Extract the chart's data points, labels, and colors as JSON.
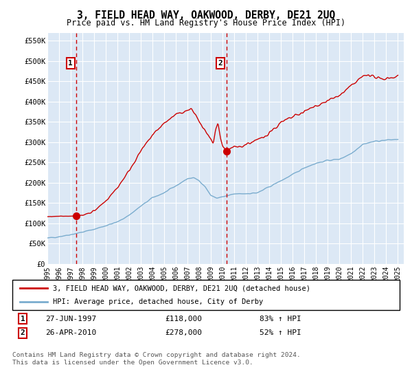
{
  "title": "3, FIELD HEAD WAY, OAKWOOD, DERBY, DE21 2UQ",
  "subtitle": "Price paid vs. HM Land Registry's House Price Index (HPI)",
  "legend_line1": "3, FIELD HEAD WAY, OAKWOOD, DERBY, DE21 2UQ (detached house)",
  "legend_line2": "HPI: Average price, detached house, City of Derby",
  "marker1_date": "27-JUN-1997",
  "marker1_price": 118000,
  "marker1_label": "83% ↑ HPI",
  "marker2_date": "26-APR-2010",
  "marker2_price": 278000,
  "marker2_label": "52% ↑ HPI",
  "marker1_x": 1997.49,
  "marker2_x": 2010.32,
  "ylim": [
    0,
    570000
  ],
  "xlim": [
    1995.0,
    2025.5
  ],
  "yticks": [
    0,
    50000,
    100000,
    150000,
    200000,
    250000,
    300000,
    350000,
    400000,
    450000,
    500000,
    550000
  ],
  "ytick_labels": [
    "£0",
    "£50K",
    "£100K",
    "£150K",
    "£200K",
    "£250K",
    "£300K",
    "£350K",
    "£400K",
    "£450K",
    "£500K",
    "£550K"
  ],
  "xticks": [
    1995,
    1996,
    1997,
    1998,
    1999,
    2000,
    2001,
    2002,
    2003,
    2004,
    2005,
    2006,
    2007,
    2008,
    2009,
    2010,
    2011,
    2012,
    2013,
    2014,
    2015,
    2016,
    2017,
    2018,
    2019,
    2020,
    2021,
    2022,
    2023,
    2024,
    2025
  ],
  "red_line_color": "#cc0000",
  "blue_line_color": "#7aacce",
  "bg_color": "#dce8f5",
  "grid_color": "#ffffff",
  "footnote": "Contains HM Land Registry data © Crown copyright and database right 2024.\nThis data is licensed under the Open Government Licence v3.0."
}
